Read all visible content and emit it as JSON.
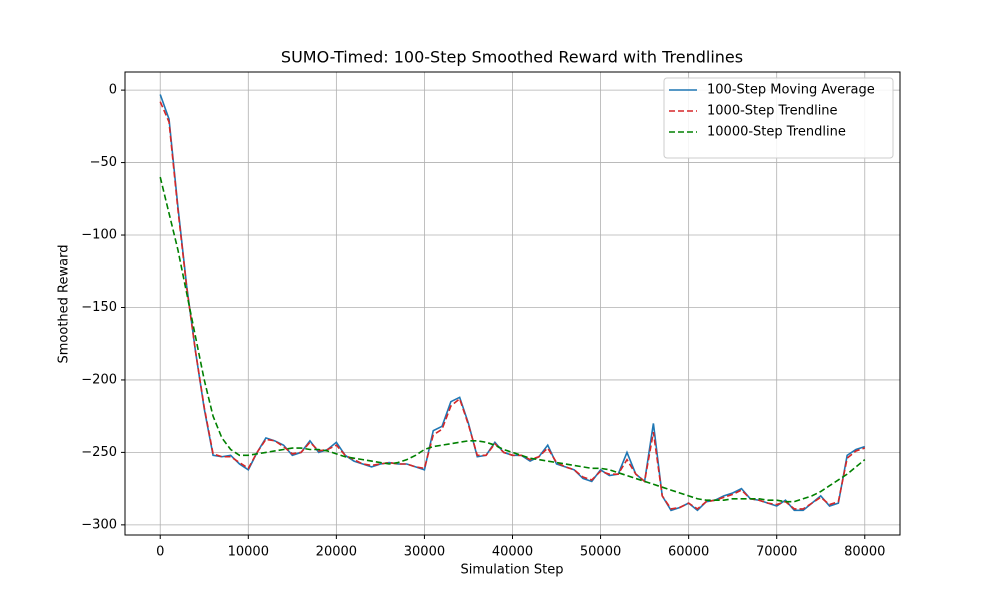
{
  "chart_data": {
    "type": "line",
    "title": "SUMO-Timed: 100-Step Smoothed Reward with Trendlines",
    "xlabel": "Simulation Step",
    "ylabel": "Smoothed Reward",
    "x": [
      0,
      1000,
      2000,
      3000,
      4000,
      5000,
      6000,
      7000,
      8000,
      9000,
      10000,
      11000,
      12000,
      13000,
      14000,
      15000,
      16000,
      17000,
      18000,
      19000,
      20000,
      21000,
      22000,
      23000,
      24000,
      25000,
      26000,
      27000,
      28000,
      29000,
      30000,
      31000,
      32000,
      33000,
      34000,
      35000,
      36000,
      37000,
      38000,
      39000,
      40000,
      41000,
      42000,
      43000,
      44000,
      45000,
      46000,
      47000,
      48000,
      49000,
      50000,
      51000,
      52000,
      53000,
      54000,
      55000,
      56000,
      57000,
      58000,
      59000,
      60000,
      61000,
      62000,
      63000,
      64000,
      65000,
      66000,
      67000,
      68000,
      69000,
      70000,
      71000,
      72000,
      73000,
      74000,
      75000,
      76000,
      77000,
      78000,
      79000,
      80000
    ],
    "series": [
      {
        "name": "100-Step Moving Average",
        "color": "#1f77b4",
        "linestyle": "solid",
        "values": [
          -3,
          -20,
          -80,
          -135,
          -180,
          -220,
          -252,
          -253,
          -252,
          -258,
          -262,
          -250,
          -240,
          -242,
          -245,
          -252,
          -250,
          -242,
          -250,
          -248,
          -243,
          -252,
          -256,
          -258,
          -260,
          -258,
          -257,
          -258,
          -258,
          -260,
          -262,
          -235,
          -232,
          -215,
          -212,
          -230,
          -253,
          -252,
          -243,
          -250,
          -252,
          -252,
          -256,
          -253,
          -245,
          -258,
          -260,
          -262,
          -268,
          -270,
          -262,
          -266,
          -265,
          -250,
          -265,
          -270,
          -230,
          -280,
          -290,
          -288,
          -285,
          -290,
          -284,
          -283,
          -280,
          -278,
          -275,
          -282,
          -283,
          -285,
          -287,
          -283,
          -290,
          -290,
          -285,
          -280,
          -287,
          -285,
          -252,
          -248,
          -246
        ]
      },
      {
        "name": "1000-Step Trendline",
        "color": "#d62728",
        "linestyle": "dashed",
        "values": [
          -8,
          -22,
          -82,
          -136,
          -180,
          -219,
          -251,
          -253,
          -253,
          -257,
          -261,
          -250,
          -241,
          -242,
          -246,
          -251,
          -250,
          -243,
          -249,
          -248,
          -245,
          -252,
          -255,
          -258,
          -259,
          -258,
          -257,
          -258,
          -258,
          -260,
          -261,
          -238,
          -234,
          -218,
          -213,
          -231,
          -252,
          -252,
          -244,
          -250,
          -252,
          -252,
          -255,
          -253,
          -247,
          -257,
          -260,
          -262,
          -267,
          -269,
          -263,
          -265,
          -265,
          -255,
          -265,
          -270,
          -236,
          -280,
          -289,
          -288,
          -285,
          -289,
          -284,
          -283,
          -281,
          -279,
          -276,
          -282,
          -283,
          -285,
          -286,
          -284,
          -289,
          -289,
          -285,
          -281,
          -286,
          -284,
          -254,
          -249,
          -247
        ]
      },
      {
        "name": "10000-Step Trendline",
        "color": "#008000",
        "linestyle": "dashed",
        "values": [
          -60,
          -85,
          -110,
          -140,
          -170,
          -200,
          -225,
          -240,
          -248,
          -252,
          -252,
          -251,
          -250,
          -249,
          -248,
          -247,
          -247,
          -248,
          -248,
          -249,
          -251,
          -253,
          -254,
          -255,
          -256,
          -257,
          -258,
          -257,
          -255,
          -252,
          -248,
          -246,
          -245,
          -244,
          -243,
          -242,
          -242,
          -243,
          -245,
          -248,
          -250,
          -252,
          -254,
          -255,
          -256,
          -257,
          -258,
          -259,
          -260,
          -261,
          -261,
          -262,
          -264,
          -266,
          -268,
          -270,
          -272,
          -274,
          -276,
          -278,
          -280,
          -282,
          -283,
          -283,
          -283,
          -282,
          -282,
          -282,
          -282,
          -283,
          -283,
          -284,
          -284,
          -282,
          -280,
          -277,
          -273,
          -269,
          -265,
          -260,
          -255
        ]
      }
    ],
    "xlim": [
      -4000,
      84000
    ],
    "ylim": [
      -307,
      12.5
    ],
    "xticks": [
      0,
      10000,
      20000,
      30000,
      40000,
      50000,
      60000,
      70000,
      80000
    ],
    "yticks": [
      0,
      {
        "value": -50,
        "label": "−50"
      },
      {
        "value": -100,
        "label": "−100"
      },
      {
        "value": -150,
        "label": "−150"
      },
      {
        "value": -200,
        "label": "−200"
      },
      {
        "value": -250,
        "label": "−250"
      },
      {
        "value": -300,
        "label": "−300"
      }
    ],
    "grid": true,
    "legend": "upper right"
  }
}
